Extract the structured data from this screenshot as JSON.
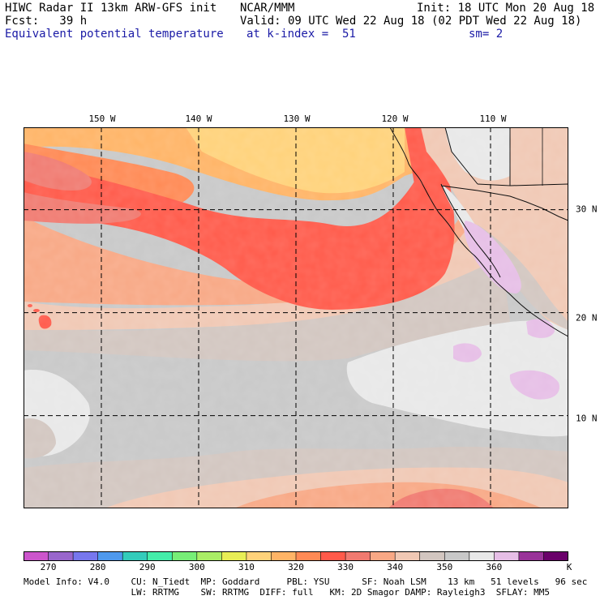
{
  "header": {
    "line1_left": "HIWC Radar II 13km ARW-GFS init",
    "line1_mid": "NCAR/MMM",
    "line1_right": "Init: 18 UTC Mon 20 Aug 18",
    "line2_left": "Fcst:   39 h",
    "line2_right": "Valid: 09 UTC Wed 22 Aug 18 (02 PDT Wed 22 Aug 18)",
    "line3_left": "Equivalent potential temperature",
    "line3_mid": "at k-index =  51",
    "line3_right": "sm= 2"
  },
  "map": {
    "lon_labels": [
      "150 W",
      "140 W",
      "130 W",
      "120 W",
      "110 W"
    ],
    "lon_values": [
      -150,
      -140,
      -130,
      -120,
      -110
    ],
    "lat_labels": [
      "30 N",
      "20 N",
      "10 N"
    ],
    "lat_values": [
      30,
      20,
      10
    ],
    "lon_range": [
      -158,
      -102
    ],
    "lat_range": [
      1,
      38
    ],
    "grid": "dashed",
    "colors": {
      "c270": "#cc55cc",
      "c275": "#9966cc",
      "c280": "#7777ee",
      "c285": "#4e99ee",
      "c290": "#33ccbb",
      "c295": "#44eeaa",
      "c300": "#77ee77",
      "c305": "#aaee66",
      "c310": "#e8ee55",
      "c315": "#ffd27a",
      "c320": "#ffb466",
      "c325": "#ff8a55",
      "c330": "#ff5a4a",
      "c335": "#f07a70",
      "c340": "#f8a885",
      "c345": "#f0c8b4",
      "c350": "#d2c6c0",
      "c355": "#c8c8c8",
      "c360": "#e8e8e8",
      "c365": "#e6bee6",
      "c370": "#993399",
      "c375": "#6a006a"
    }
  },
  "colorbar": {
    "labels": [
      "270",
      "280",
      "290",
      "300",
      "310",
      "320",
      "330",
      "340",
      "350",
      "360"
    ],
    "unit": "K",
    "bins": [
      "#cc55cc",
      "#9966cc",
      "#7777ee",
      "#4e99ee",
      "#33ccbb",
      "#44eeaa",
      "#77ee77",
      "#aaee66",
      "#e8ee55",
      "#ffd27a",
      "#ffb466",
      "#ff8a55",
      "#ff5a4a",
      "#f07a70",
      "#f8a885",
      "#f0c8b4",
      "#d2c6c0",
      "#c8c8c8",
      "#e8e8e8",
      "#e6bee6",
      "#993399",
      "#6a006a"
    ]
  },
  "footer": {
    "line1": "Model Info: V4.0    CU: N_Tiedt  MP: Goddard     PBL: YSU      SF: Noah LSM    13 km   51 levels   96 sec",
    "line2": "                    LW: RRTMG    SW: RRTMG  DIFF: full   KM: 2D Smagor DAMP: Rayleigh3  SFLAY: MM5"
  }
}
